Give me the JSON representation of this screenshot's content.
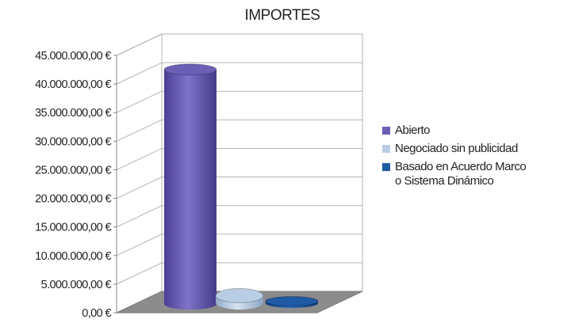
{
  "chart_data": {
    "type": "bar",
    "title": "IMPORTES",
    "categories": [
      "Abierto",
      "Negociado sin publicidad",
      "Basado en Acuerdo Marco o Sistema Dinámico"
    ],
    "values": [
      41000000,
      1200000,
      350000
    ],
    "colors": [
      "#6a5fb5",
      "#b9cde4",
      "#1f5aa6"
    ],
    "ylim": [
      0,
      45000000
    ],
    "y_ticks": [
      0,
      5000000,
      10000000,
      15000000,
      20000000,
      25000000,
      30000000,
      35000000,
      40000000,
      45000000
    ],
    "y_tick_labels": [
      "0,00 €",
      "5.000.000,00 €",
      "10.000.000,00 €",
      "15.000.000,00 €",
      "20.000.000,00 €",
      "25.000.000,00 €",
      "30.000.000,00 €",
      "35.000.000,00 €",
      "40.000.000,00 €",
      "45.000.000,00 €"
    ],
    "grid": true,
    "legend_position": "right",
    "legend_labels": [
      "Abierto",
      "Negociado sin publicidad",
      "Basado en Acuerdo Marco\no Sistema Dinámico"
    ],
    "bar_shape": "cylinder-3d"
  }
}
